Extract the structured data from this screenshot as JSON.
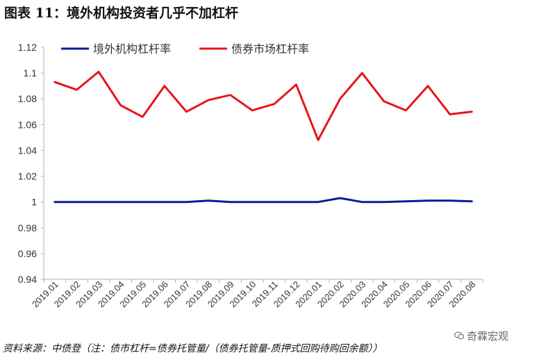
{
  "figure": {
    "title": "图表 11：境外机构投资者几乎不加杠杆",
    "source": "资料来源：中债登（注：债市杠杆=债券托管量/（债券托管量-质押式回购待购回余额））",
    "watermark": "奇霖宏观"
  },
  "chart_data": {
    "type": "line",
    "title": "",
    "xlabel": "",
    "ylabel": "",
    "x": [
      "2019.01",
      "2019.02",
      "2019.03",
      "2019.04",
      "2019.05",
      "2019.06",
      "2019.07",
      "2019.08",
      "2019.09",
      "2019.10",
      "2019.11",
      "2019.12",
      "2020.01",
      "2020.02",
      "2020.03",
      "2020.04",
      "2020.05",
      "2020.06",
      "2020.07",
      "2020.08"
    ],
    "ylim": [
      0.94,
      1.12
    ],
    "yticks": [
      0.94,
      0.96,
      0.98,
      1,
      1.02,
      1.04,
      1.06,
      1.08,
      1.1,
      1.12
    ],
    "ytick_labels": [
      "0.94",
      "0.96",
      "0.98",
      "1",
      "1.02",
      "1.04",
      "1.06",
      "1.08",
      "1.1",
      "1.12"
    ],
    "grid": false,
    "legend_position": "top",
    "series": [
      {
        "name": "境外机构杠杆率",
        "color": "#0a1a9c",
        "values": [
          1.0,
          1.0,
          1.0,
          1.0,
          1.0,
          1.0,
          1.0,
          1.001,
          1.0,
          1.0,
          1.0,
          1.0,
          1.0,
          1.003,
          1.0,
          1.0,
          1.0005,
          1.001,
          1.001,
          1.0005
        ]
      },
      {
        "name": "债券市场杠杆率",
        "color": "#e8141c",
        "values": [
          1.093,
          1.087,
          1.101,
          1.075,
          1.066,
          1.09,
          1.07,
          1.079,
          1.083,
          1.071,
          1.076,
          1.091,
          1.048,
          1.08,
          1.1,
          1.078,
          1.071,
          1.09,
          1.068,
          1.07
        ]
      }
    ]
  }
}
